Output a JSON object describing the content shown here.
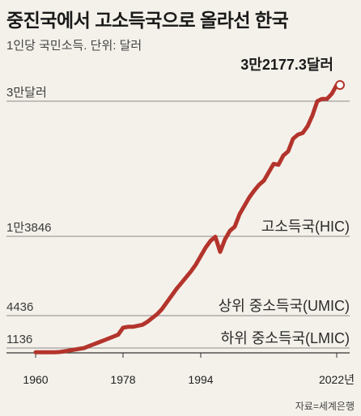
{
  "title": "중진국에서 고소득국으로 올라선 한국",
  "subtitle": "1인당 국민소득. 단위: 달러",
  "source": "자료=세계은행",
  "colors": {
    "line": "#b3342c",
    "background": "#f4f1ea",
    "grid": "#8c8c8c"
  },
  "chart_data": {
    "type": "line",
    "title": "중진국에서 고소득국으로 올라선 한국",
    "subtitle": "1인당 국민소득. 단위: 달러",
    "xlabel": "",
    "ylabel": "",
    "xlim": [
      1956,
      2026
    ],
    "ylim": [
      0,
      32500
    ],
    "xticks": [
      {
        "value": 1960,
        "label": "1960"
      },
      {
        "value": 1978,
        "label": "1978"
      },
      {
        "value": 1994,
        "label": "1994"
      },
      {
        "value": 2022,
        "label": "2022년"
      }
    ],
    "yticks": [
      {
        "value": 1136,
        "label": "1136"
      },
      {
        "value": 4436,
        "label": "4436"
      },
      {
        "value": 13846,
        "label": "1만3846"
      },
      {
        "value": 30000,
        "label": "3만달러"
      }
    ],
    "thresholds": [
      {
        "value": 1136,
        "label": "하위 중소득국(LMIC)"
      },
      {
        "value": 4436,
        "label": "상위 중소득국(UMIC)"
      },
      {
        "value": 13846,
        "label": "고소득국(HIC)"
      }
    ],
    "last_value_label": "3만2177.3달러",
    "series": [
      {
        "x": [
          1960,
          1961,
          1962,
          1963,
          1964,
          1965,
          1966,
          1967,
          1968,
          1969,
          1970,
          1971,
          1972,
          1973,
          1974,
          1975,
          1976,
          1977,
          1978,
          1979,
          1980,
          1981,
          1982,
          1983,
          1984,
          1985,
          1986,
          1987,
          1988,
          1989,
          1990,
          1991,
          1992,
          1993,
          1994,
          1995,
          1996,
          1997,
          1998,
          1999,
          2000,
          2001,
          2002,
          2003,
          2004,
          2005,
          2006,
          2007,
          2008,
          2009,
          2010,
          2011,
          2012,
          2013,
          2014,
          2015,
          2016,
          2017,
          2018,
          2019,
          2020,
          2021,
          2022
        ],
        "values": [
          150,
          150,
          150,
          150,
          150,
          200,
          380,
          570,
          760,
          950,
          1140,
          1330,
          1520,
          1710,
          1900,
          2100,
          2300,
          2500,
          3200,
          3300,
          3300,
          3400,
          3500,
          3800,
          4200,
          4600,
          5200,
          6000,
          6800,
          7600,
          8300,
          9000,
          9700,
          10500,
          11500,
          12500,
          13300,
          13800,
          12000,
          13500,
          14500,
          15000,
          16500,
          17500,
          18500,
          19300,
          20000,
          20500,
          21500,
          22500,
          22400,
          23500,
          24000,
          25500,
          26000,
          26200,
          27000,
          28300,
          30000,
          30300,
          30300,
          31000,
          32177.3
        ]
      }
    ]
  }
}
